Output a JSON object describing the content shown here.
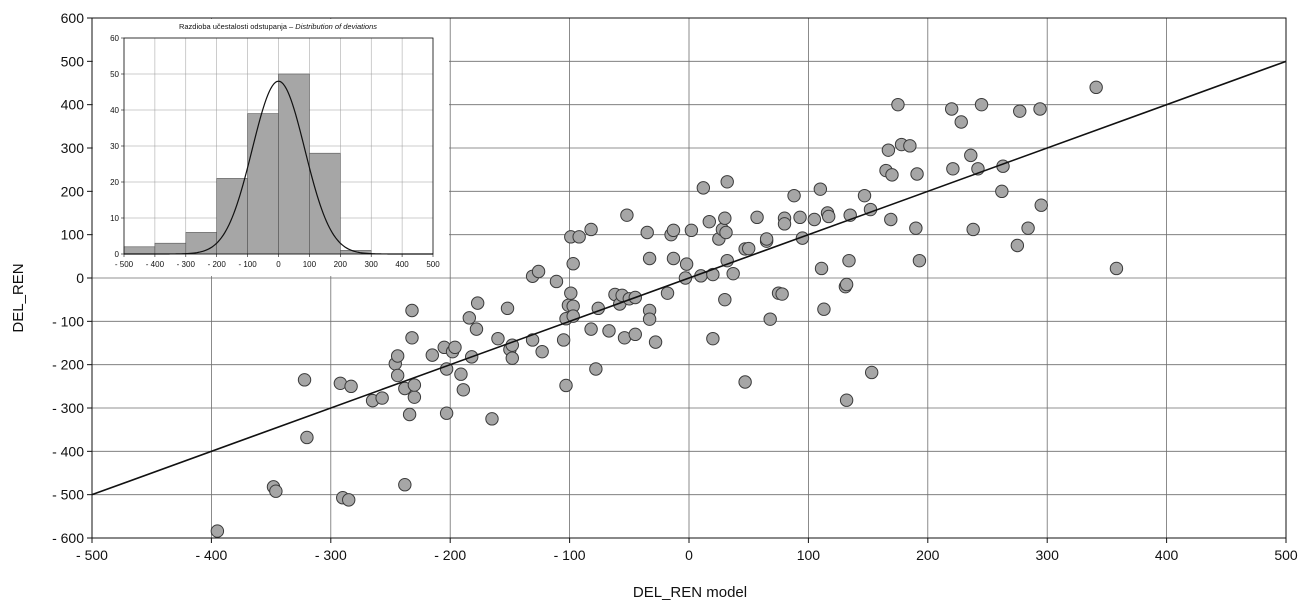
{
  "chart_data": [
    {
      "type": "scatter",
      "xlabel": "DEL_REN model",
      "ylabel": "DEL_REN",
      "xlim": [
        -500,
        500
      ],
      "ylim": [
        -600,
        600
      ],
      "x_ticks": [
        -500,
        -400,
        -300,
        -200,
        -100,
        0,
        100,
        200,
        300,
        400,
        500
      ],
      "y_ticks": [
        -600,
        -500,
        -400,
        -300,
        -200,
        -100,
        0,
        100,
        200,
        300,
        400,
        500,
        600
      ],
      "x_tick_labels": [
        "- 500",
        "- 400",
        "- 300",
        "- 200",
        "- 100",
        "0",
        "100",
        "200",
        "300",
        "400",
        "500"
      ],
      "y_tick_labels": [
        "- 600",
        "- 500",
        "- 400",
        "- 300",
        "- 200",
        "- 100",
        "0",
        "100",
        "200",
        "300",
        "400",
        "500",
        "600"
      ],
      "grid": true,
      "marker_color": "#a6a6a6",
      "line": {
        "x": [
          -500,
          500
        ],
        "y": [
          -500,
          500
        ]
      },
      "points": [
        [
          -395,
          -584
        ],
        [
          -348,
          -482
        ],
        [
          -346,
          -492
        ],
        [
          -290,
          -507
        ],
        [
          -285,
          -512
        ],
        [
          -238,
          -477
        ],
        [
          -322,
          -235
        ],
        [
          -320,
          -368
        ],
        [
          -292,
          -243
        ],
        [
          -283,
          -250
        ],
        [
          -265,
          -283
        ],
        [
          -257,
          -277
        ],
        [
          -246,
          -198
        ],
        [
          -244,
          -180
        ],
        [
          -244,
          -225
        ],
        [
          -238,
          -255
        ],
        [
          -234,
          -315
        ],
        [
          -232,
          -75
        ],
        [
          -232,
          -138
        ],
        [
          -230,
          -275
        ],
        [
          -230,
          -247
        ],
        [
          -215,
          -178
        ],
        [
          -205,
          -160
        ],
        [
          -203,
          -210
        ],
        [
          -203,
          -312
        ],
        [
          -198,
          -170
        ],
        [
          -196,
          -160
        ],
        [
          -191,
          -222
        ],
        [
          -189,
          -258
        ],
        [
          -184,
          -92
        ],
        [
          -182,
          -182
        ],
        [
          -178,
          -118
        ],
        [
          -177,
          -58
        ],
        [
          -165,
          -325
        ],
        [
          -160,
          -140
        ],
        [
          -152,
          -70
        ],
        [
          -150,
          -165
        ],
        [
          -148,
          -155
        ],
        [
          -148,
          -185
        ],
        [
          -131,
          -143
        ],
        [
          -131,
          4
        ],
        [
          -126,
          15
        ],
        [
          -123,
          -170
        ],
        [
          -111,
          -8
        ],
        [
          -105,
          -143
        ],
        [
          -103,
          -94
        ],
        [
          -103,
          -248
        ],
        [
          -101,
          -63
        ],
        [
          -99,
          -35
        ],
        [
          -99,
          95
        ],
        [
          -97,
          -65
        ],
        [
          -97,
          -88
        ],
        [
          -97,
          33
        ],
        [
          -92,
          95
        ],
        [
          -82,
          -118
        ],
        [
          -82,
          112
        ],
        [
          -78,
          -210
        ],
        [
          -76,
          -70
        ],
        [
          -67,
          -122
        ],
        [
          -62,
          -38
        ],
        [
          -58,
          -60
        ],
        [
          -56,
          -40
        ],
        [
          -54,
          -138
        ],
        [
          -52,
          145
        ],
        [
          -50,
          -48
        ],
        [
          -45,
          -45
        ],
        [
          -45,
          -130
        ],
        [
          -35,
          105
        ],
        [
          -33,
          -75
        ],
        [
          -33,
          -95
        ],
        [
          -33,
          45
        ],
        [
          -28,
          -148
        ],
        [
          -18,
          -35
        ],
        [
          -15,
          100
        ],
        [
          -13,
          110
        ],
        [
          -13,
          45
        ],
        [
          -3,
          0
        ],
        [
          -2,
          32
        ],
        [
          2,
          110
        ],
        [
          10,
          5
        ],
        [
          12,
          208
        ],
        [
          17,
          130
        ],
        [
          20,
          8
        ],
        [
          20,
          -140
        ],
        [
          25,
          90
        ],
        [
          28,
          112
        ],
        [
          30,
          -50
        ],
        [
          30,
          138
        ],
        [
          31,
          105
        ],
        [
          32,
          40
        ],
        [
          32,
          222
        ],
        [
          37,
          10
        ],
        [
          47,
          -240
        ],
        [
          47,
          67
        ],
        [
          50,
          68
        ],
        [
          57,
          140
        ],
        [
          65,
          85
        ],
        [
          65,
          90
        ],
        [
          68,
          -95
        ],
        [
          75,
          -35
        ],
        [
          78,
          -37
        ],
        [
          80,
          138
        ],
        [
          80,
          125
        ],
        [
          88,
          190
        ],
        [
          93,
          140
        ],
        [
          95,
          92
        ],
        [
          105,
          135
        ],
        [
          110,
          205
        ],
        [
          111,
          22
        ],
        [
          113,
          -72
        ],
        [
          116,
          150
        ],
        [
          117,
          142
        ],
        [
          131,
          -20
        ],
        [
          132,
          -282
        ],
        [
          132,
          -15
        ],
        [
          134,
          40
        ],
        [
          135,
          145
        ],
        [
          147,
          190
        ],
        [
          152,
          158
        ],
        [
          153,
          -218
        ],
        [
          165,
          248
        ],
        [
          167,
          295
        ],
        [
          169,
          135
        ],
        [
          170,
          238
        ],
        [
          175,
          400
        ],
        [
          178,
          308
        ],
        [
          185,
          305
        ],
        [
          190,
          115
        ],
        [
          191,
          240
        ],
        [
          193,
          40
        ],
        [
          220,
          390
        ],
        [
          221,
          252
        ],
        [
          228,
          360
        ],
        [
          236,
          283
        ],
        [
          238,
          112
        ],
        [
          242,
          252
        ],
        [
          245,
          400
        ],
        [
          262,
          200
        ],
        [
          263,
          258
        ],
        [
          275,
          75
        ],
        [
          277,
          385
        ],
        [
          284,
          115
        ],
        [
          294,
          390
        ],
        [
          295,
          168
        ],
        [
          341,
          440
        ],
        [
          358,
          22
        ]
      ]
    },
    {
      "type": "bar",
      "title": "Razdioba učestalosti odstupanja – Distribution of deviations",
      "title_main": "Razdioba učestalosti odstupanja – ",
      "title_italic": "Distribution of deviations",
      "bin_edges": [
        -500,
        -400,
        -300,
        -200,
        -100,
        0,
        100,
        200,
        300,
        400,
        500
      ],
      "values": [
        2,
        3,
        6,
        21,
        39,
        50,
        28,
        1,
        0,
        0
      ],
      "bar_color": "#a6a6a6",
      "curve": "normal",
      "curve_peak": 48,
      "curve_center": 0,
      "curve_sigma": 85,
      "xlim": [
        -500,
        500
      ],
      "ylim": [
        0,
        60
      ],
      "x_ticks": [
        -500,
        -400,
        -300,
        -200,
        -100,
        0,
        100,
        200,
        300,
        400,
        500
      ],
      "y_ticks": [
        0,
        10,
        20,
        30,
        40,
        50,
        60
      ],
      "x_tick_labels": [
        "- 500",
        "- 400",
        "- 300",
        "- 200",
        "- 100",
        "0",
        "100",
        "200",
        "300",
        "400",
        "500"
      ],
      "y_tick_labels": [
        "0",
        "10",
        "20",
        "30",
        "40",
        "50",
        "60"
      ]
    }
  ]
}
